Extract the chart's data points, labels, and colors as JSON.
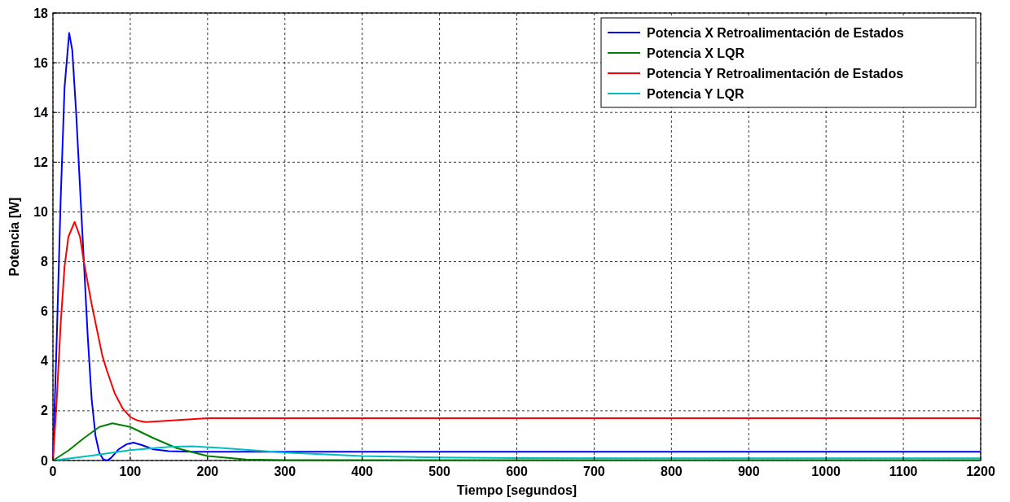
{
  "chart_data": {
    "type": "line",
    "xlabel": "Tiempo [segundos]",
    "ylabel": "Potencia [W]",
    "xlim": [
      0,
      1200
    ],
    "ylim": [
      0,
      18
    ],
    "xticks": [
      0,
      100,
      200,
      300,
      400,
      500,
      600,
      700,
      800,
      900,
      1000,
      1100,
      1200
    ],
    "yticks": [
      0,
      2,
      4,
      6,
      8,
      10,
      12,
      14,
      16,
      18
    ],
    "grid": true,
    "legend": "top right",
    "line_style": "solid",
    "series": [
      {
        "name": "Potencia X Retroalimentación de Estados",
        "color": "#0000ff",
        "x": [
          0,
          5,
          10,
          15,
          21,
          25,
          30,
          35,
          40,
          45,
          50,
          55,
          60,
          65,
          70,
          75,
          85,
          95,
          104,
          115,
          130,
          150,
          180,
          250,
          1200
        ],
        "values": [
          0,
          5,
          10.5,
          15,
          17.2,
          16.5,
          14,
          11,
          8,
          5,
          2.5,
          1,
          0.3,
          0.05,
          0,
          0.1,
          0.45,
          0.65,
          0.72,
          0.62,
          0.45,
          0.38,
          0.35,
          0.35,
          0.35
        ]
      },
      {
        "name": "Potencia X LQR",
        "color": "#008000",
        "x": [
          0,
          20,
          40,
          60,
          77,
          100,
          130,
          160,
          200,
          250,
          300,
          1200
        ],
        "values": [
          0,
          0.4,
          0.9,
          1.35,
          1.5,
          1.35,
          0.9,
          0.5,
          0.18,
          0.04,
          0.02,
          0.02
        ]
      },
      {
        "name": "Potencia Y Retroalimentación de Estados",
        "color": "#ff0000",
        "x": [
          0,
          5,
          10,
          15,
          20,
          28,
          35,
          40,
          50,
          64,
          70,
          80,
          90,
          100,
          110,
          120,
          150,
          200,
          1200
        ],
        "values": [
          0,
          2.5,
          5.5,
          7.8,
          9,
          9.6,
          9,
          8,
          6.3,
          4.2,
          3.6,
          2.7,
          2.1,
          1.75,
          1.6,
          1.55,
          1.6,
          1.7,
          1.7
        ]
      },
      {
        "name": "Potencia Y LQR",
        "color": "#00bfbf",
        "x": [
          0,
          50,
          100,
          150,
          180,
          220,
          300,
          400,
          500,
          600,
          800,
          1200
        ],
        "values": [
          0,
          0.2,
          0.42,
          0.55,
          0.57,
          0.5,
          0.32,
          0.18,
          0.12,
          0.1,
          0.09,
          0.09
        ]
      }
    ]
  }
}
